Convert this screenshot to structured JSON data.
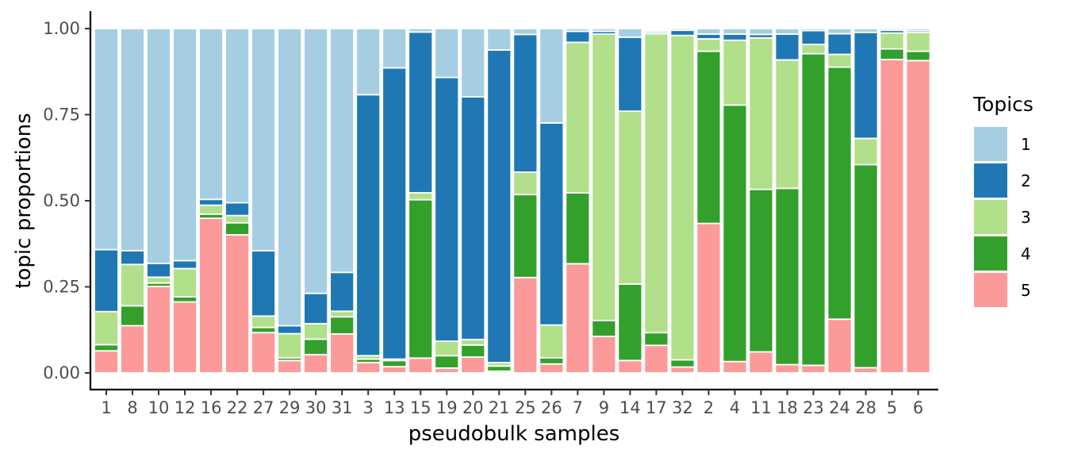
{
  "chart_data": {
    "type": "bar",
    "stacked": true,
    "xlabel": "pseudobulk samples",
    "ylabel": "topic proportions",
    "ylim": [
      0,
      1
    ],
    "yticks": [
      "0.00",
      "0.25",
      "0.50",
      "0.75",
      "1.00"
    ],
    "grid": false,
    "legend": {
      "title": "Topics",
      "position": "right"
    },
    "categories": [
      "1",
      "8",
      "10",
      "12",
      "16",
      "22",
      "27",
      "29",
      "30",
      "31",
      "3",
      "13",
      "15",
      "19",
      "20",
      "21",
      "25",
      "26",
      "7",
      "9",
      "14",
      "17",
      "32",
      "2",
      "4",
      "11",
      "18",
      "23",
      "24",
      "28",
      "5",
      "6"
    ],
    "series": [
      {
        "name": "1",
        "color": "#A6CEE3",
        "values": [
          0.642,
          0.645,
          0.682,
          0.674,
          0.496,
          0.506,
          0.645,
          0.863,
          0.769,
          0.708,
          0.192,
          0.114,
          0.01,
          0.142,
          0.198,
          0.062,
          0.017,
          0.274,
          0.008,
          0.008,
          0.025,
          0.005,
          0.005,
          0.016,
          0.016,
          0.017,
          0.016,
          0.006,
          0.015,
          0.011,
          0.005,
          0.006
        ]
      },
      {
        "name": "2",
        "color": "#1F78B4",
        "values": [
          0.18,
          0.04,
          0.04,
          0.023,
          0.017,
          0.037,
          0.19,
          0.023,
          0.088,
          0.113,
          0.758,
          0.846,
          0.467,
          0.766,
          0.705,
          0.908,
          0.4,
          0.587,
          0.032,
          0.008,
          0.215,
          0.005,
          0.015,
          0.014,
          0.018,
          0.01,
          0.075,
          0.04,
          0.06,
          0.308,
          0.008,
          0.005
        ]
      },
      {
        "name": "3",
        "color": "#B2DF8A",
        "values": [
          0.096,
          0.12,
          0.017,
          0.082,
          0.026,
          0.021,
          0.033,
          0.07,
          0.045,
          0.016,
          0.01,
          0.004,
          0.02,
          0.042,
          0.016,
          0.01,
          0.065,
          0.095,
          0.437,
          0.832,
          0.502,
          0.868,
          0.942,
          0.036,
          0.188,
          0.44,
          0.373,
          0.027,
          0.037,
          0.076,
          0.046,
          0.055
        ]
      },
      {
        "name": "4",
        "color": "#33A02C",
        "values": [
          0.018,
          0.058,
          0.01,
          0.015,
          0.012,
          0.035,
          0.015,
          0.008,
          0.045,
          0.05,
          0.01,
          0.018,
          0.46,
          0.036,
          0.035,
          0.015,
          0.241,
          0.018,
          0.206,
          0.046,
          0.222,
          0.037,
          0.021,
          0.5,
          0.745,
          0.472,
          0.512,
          0.905,
          0.732,
          0.59,
          0.031,
          0.027
        ]
      },
      {
        "name": "5",
        "color": "#FB9A99",
        "values": [
          0.064,
          0.137,
          0.251,
          0.206,
          0.449,
          0.401,
          0.117,
          0.036,
          0.053,
          0.113,
          0.03,
          0.018,
          0.043,
          0.014,
          0.046,
          0.005,
          0.277,
          0.026,
          0.317,
          0.106,
          0.036,
          0.08,
          0.017,
          0.434,
          0.033,
          0.061,
          0.024,
          0.022,
          0.156,
          0.015,
          0.91,
          0.907
        ]
      }
    ]
  }
}
